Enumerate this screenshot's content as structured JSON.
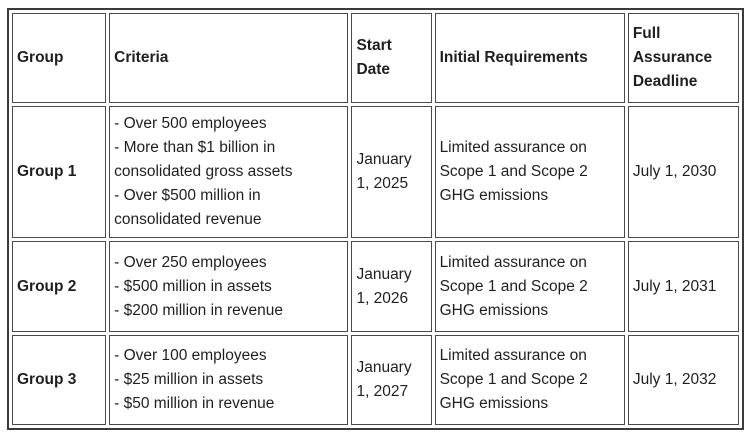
{
  "page": {
    "background": "#ffffff",
    "text_color": "#1f1f1f",
    "border_color": "#3b3b3b"
  },
  "table": {
    "headers": [
      "Group",
      "Criteria",
      "Start Date",
      "Initial Requirements",
      "Full Assurance Deadline"
    ],
    "rows": [
      {
        "group": "Group 1",
        "criteria": "- Over 500 employees\n- More than $1 billion in consolidated gross assets\n- Over $500 million in consolidated revenue",
        "start_date": "January 1, 2025",
        "initial_requirements": "Limited assurance on Scope 1 and Scope 2 GHG emissions",
        "full_assurance_deadline": "July 1, 2030"
      },
      {
        "group": "Group 2",
        "criteria": "- Over 250 employees\n- $500 million in assets\n- $200 million in revenue",
        "start_date": "January 1, 2026",
        "initial_requirements": "Limited assurance on Scope 1 and Scope 2 GHG emissions",
        "full_assurance_deadline": "July 1, 2031"
      },
      {
        "group": "Group 3",
        "criteria": "- Over 100 employees\n- $25 million in assets\n- $50 million in revenue",
        "start_date": "January 1, 2027",
        "initial_requirements": "Limited assurance on Scope 1 and Scope 2 GHG emissions",
        "full_assurance_deadline": "July 1, 2032"
      }
    ]
  }
}
